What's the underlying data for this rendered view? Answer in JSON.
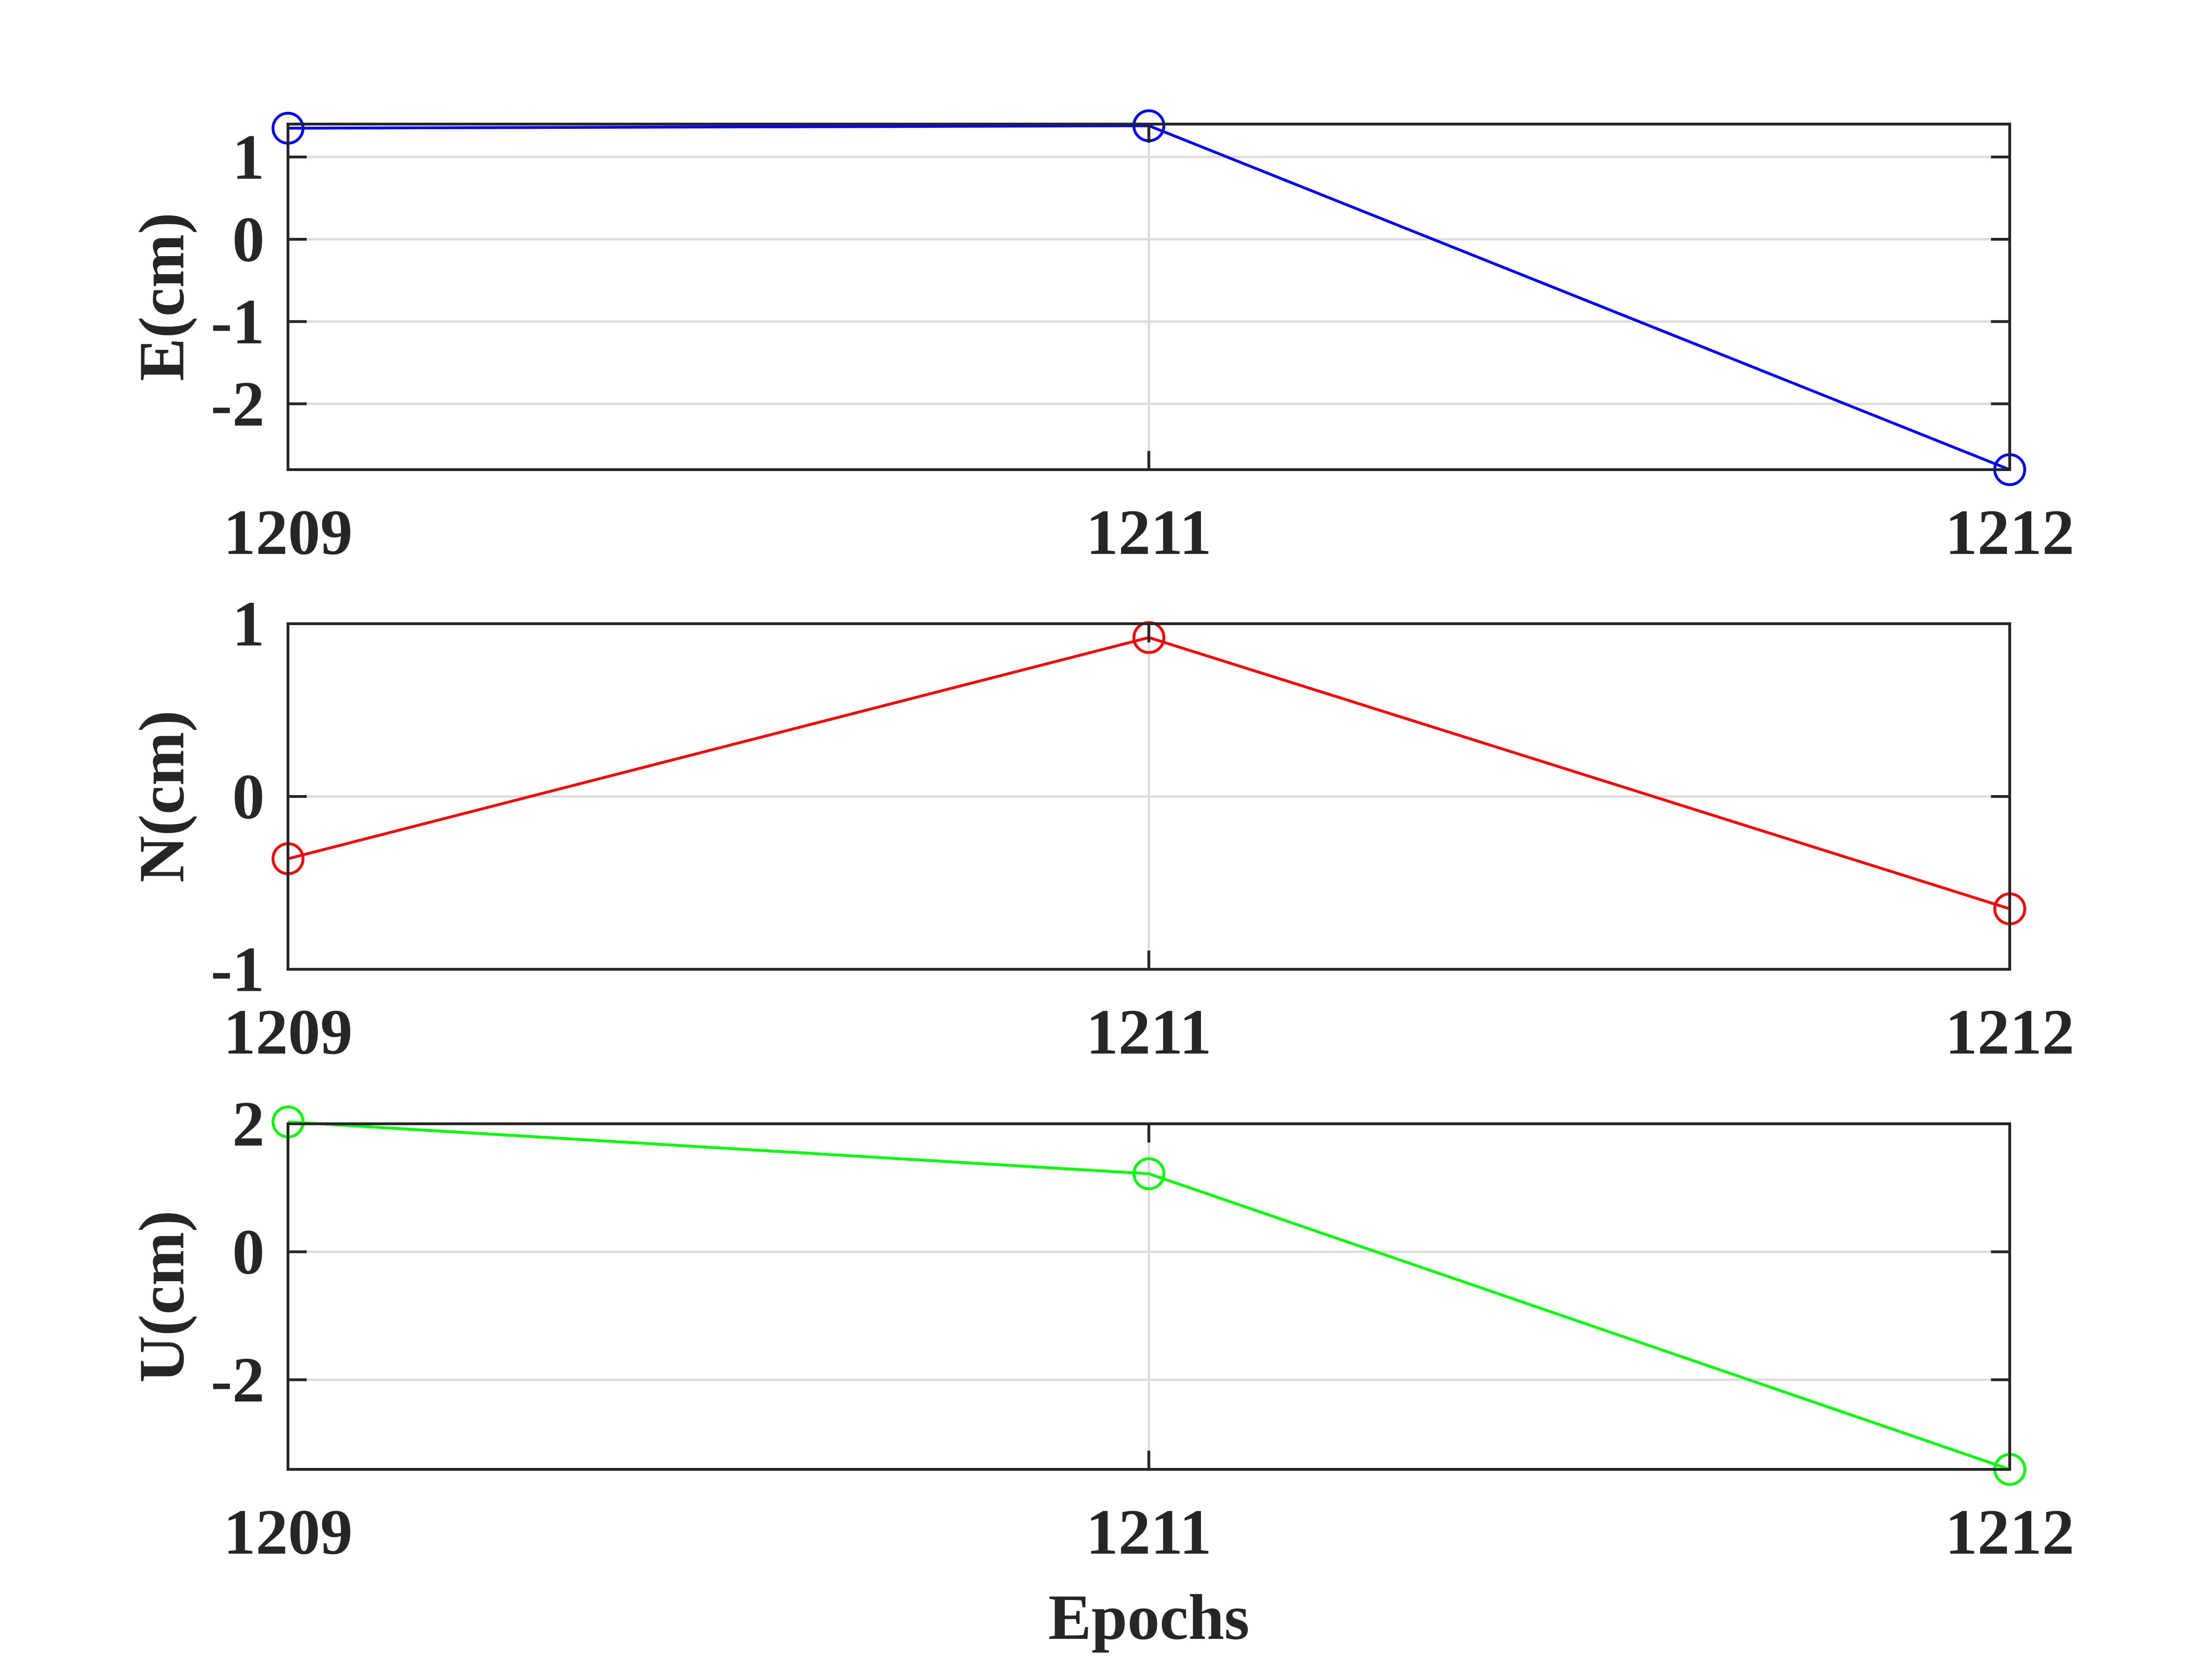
{
  "chart_data": [
    {
      "type": "line",
      "x": [
        "1209",
        "1211",
        "1212"
      ],
      "xticks": [
        "1209",
        "1211",
        "1212"
      ],
      "ylabel": "E(cm)",
      "xlabel": "",
      "ylim": [
        -2.8,
        1.4
      ],
      "yticks": [
        "1",
        "0",
        "-1",
        "-2"
      ],
      "ytick_values": [
        1,
        0,
        -1,
        -2
      ],
      "grid": true,
      "series": [
        {
          "values": [
            1.35,
            1.38,
            -2.8
          ],
          "color": "#0000ff",
          "marker": "circle"
        }
      ]
    },
    {
      "type": "line",
      "x": [
        "1209",
        "1211",
        "1212"
      ],
      "xticks": [
        "1209",
        "1211",
        "1212"
      ],
      "ylabel": "N(cm)",
      "xlabel": "",
      "ylim": [
        -1,
        1
      ],
      "yticks": [
        "1",
        "0",
        "-1"
      ],
      "ytick_values": [
        1,
        0,
        -1
      ],
      "grid": true,
      "series": [
        {
          "values": [
            -0.36,
            0.92,
            -0.65
          ],
          "color": "#ff0000",
          "marker": "circle"
        }
      ]
    },
    {
      "type": "line",
      "x": [
        "1209",
        "1211",
        "1212"
      ],
      "xticks": [
        "1209",
        "1211",
        "1212"
      ],
      "ylabel": "U(cm)",
      "xlabel": "Epochs",
      "ylim": [
        -3.4,
        2
      ],
      "yticks": [
        "2",
        "0",
        "-2"
      ],
      "ytick_values": [
        2,
        0,
        -2
      ],
      "grid": true,
      "series": [
        {
          "values": [
            2.03,
            1.22,
            -3.4
          ],
          "color": "#00ff00",
          "marker": "circle"
        }
      ]
    }
  ]
}
